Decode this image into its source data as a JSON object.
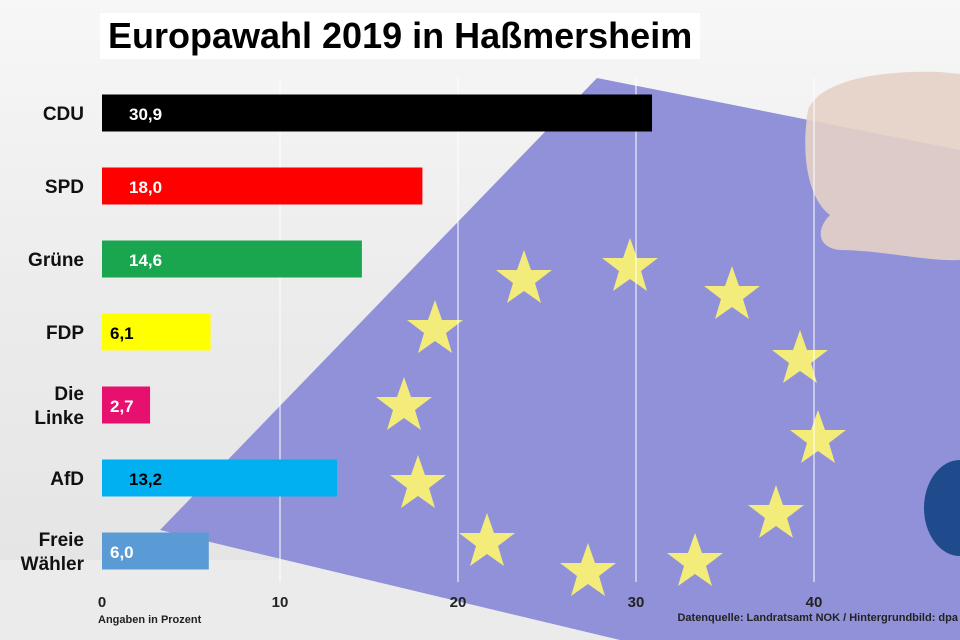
{
  "title": "Europawahl 2019 in Haßmersheim",
  "footer": {
    "note": "Angaben in Prozent",
    "source": "Datenquelle: Landratsamt NOK / Hintergrundbild: dpa"
  },
  "chart_data": {
    "type": "bar",
    "orientation": "horizontal",
    "title": "Europawahl 2019 in Haßmersheim",
    "xlabel": "",
    "ylabel": "",
    "xlim": [
      0,
      48
    ],
    "xticks": [
      0,
      10,
      20,
      30,
      40
    ],
    "grid": true,
    "categories": [
      {
        "lines": [
          "CDU"
        ]
      },
      {
        "lines": [
          "SPD"
        ]
      },
      {
        "lines": [
          "Grüne"
        ]
      },
      {
        "lines": [
          "FDP"
        ]
      },
      {
        "lines": [
          "Die",
          "Linke"
        ]
      },
      {
        "lines": [
          "AfD"
        ]
      },
      {
        "lines": [
          "Freie",
          "Wähler"
        ]
      }
    ],
    "values": [
      30.9,
      18.0,
      14.6,
      6.1,
      2.7,
      13.2,
      6.0
    ],
    "value_labels": [
      "30,9",
      "18,0",
      "14,6",
      "6,1",
      "2,7",
      "13,2",
      "6,0"
    ],
    "colors": [
      "#000000",
      "#ff0000",
      "#1aa64e",
      "#ffff00",
      "#e8106e",
      "#00b0f0",
      "#5b9bd5"
    ],
    "label_colors": [
      "#ffffff",
      "#ffffff",
      "#ffffff",
      "#000000",
      "#ffffff",
      "#000000",
      "#ffffff"
    ]
  }
}
